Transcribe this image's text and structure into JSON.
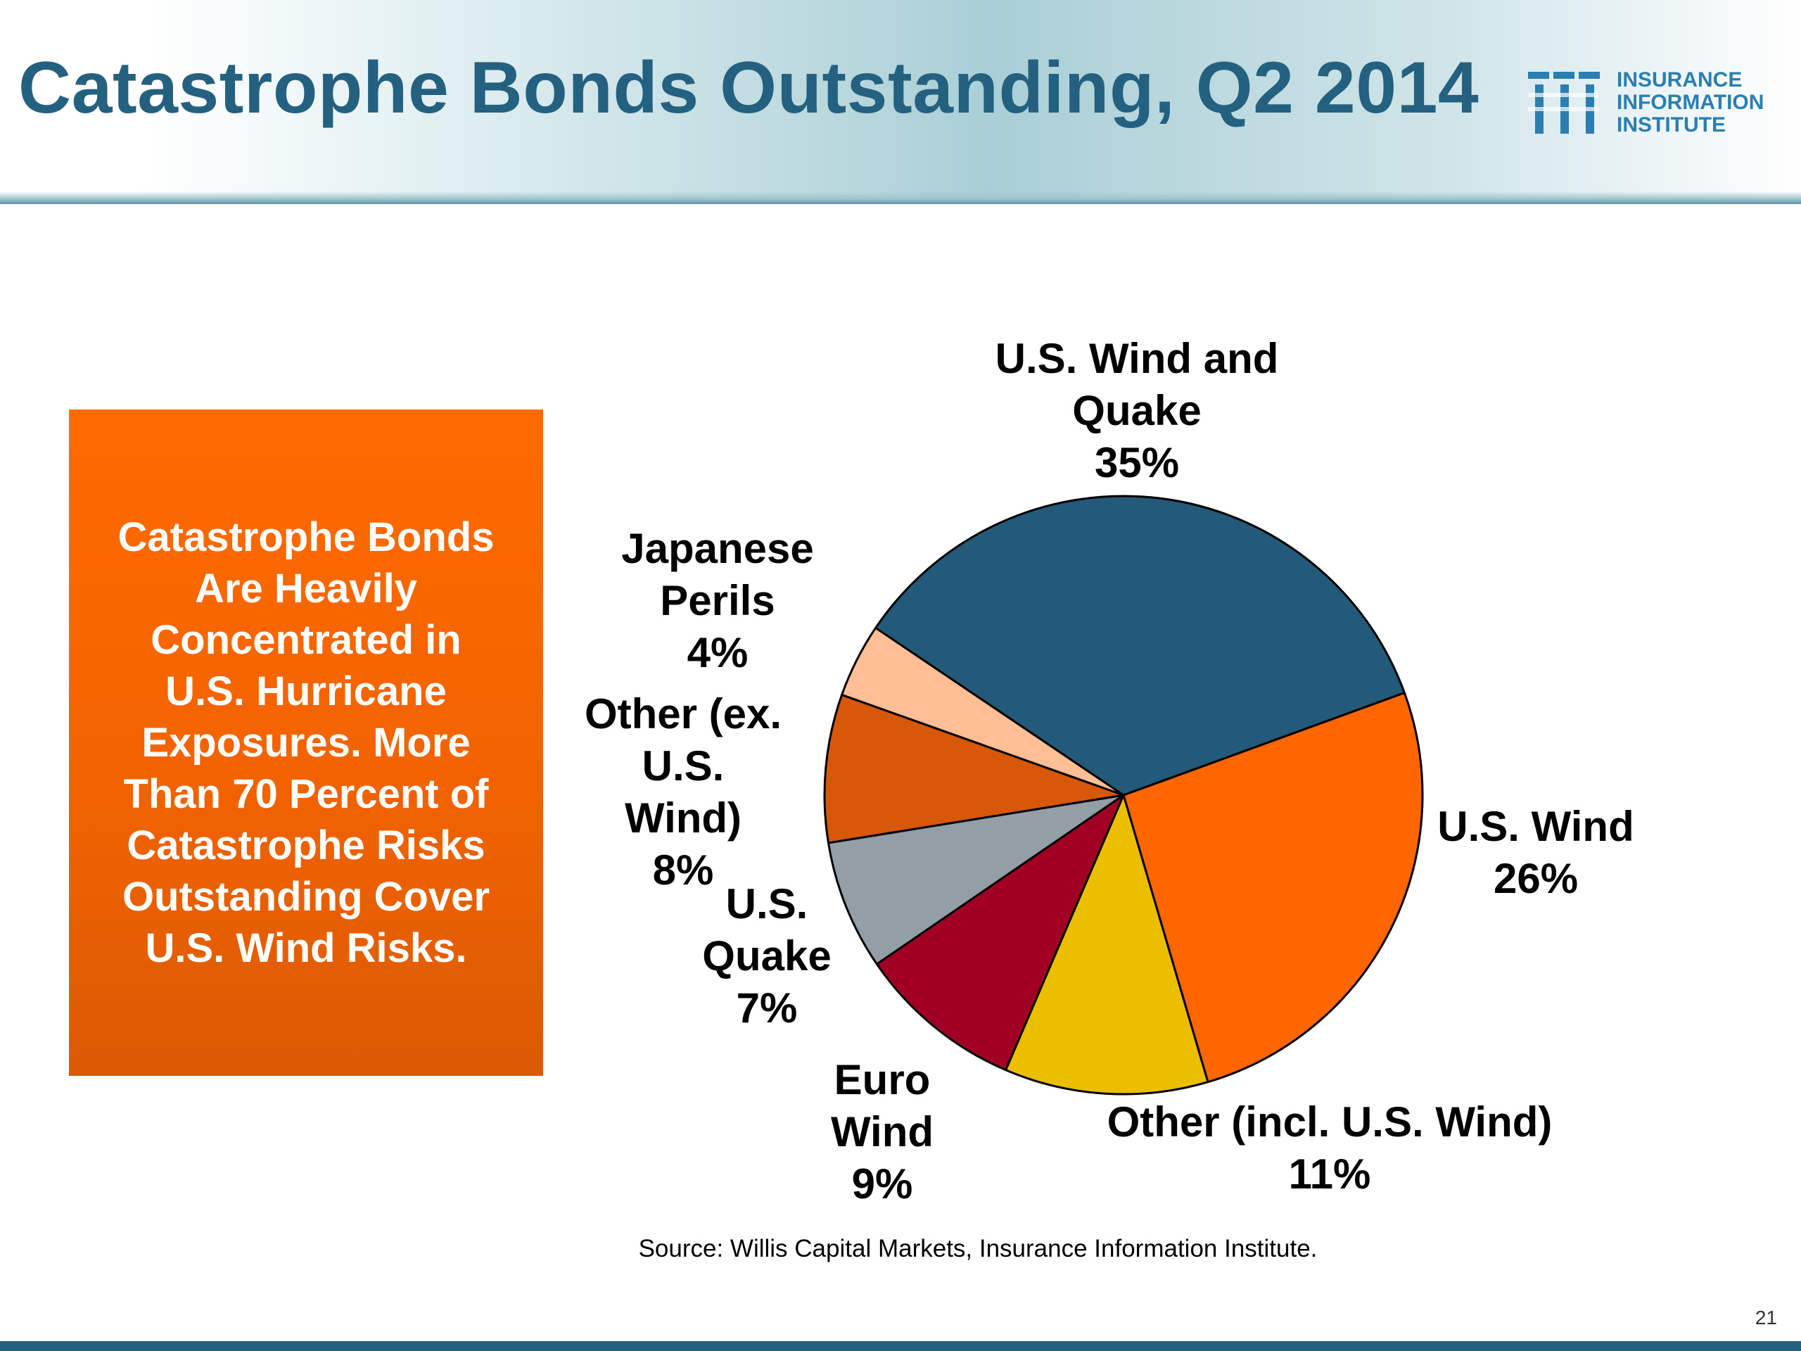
{
  "header": {
    "title": "Catastrophe Bonds Outstanding, Q2 2014",
    "logo": {
      "icon": "iii-logo-icon",
      "lines": [
        "INSURANCE",
        "INFORMATION",
        "INSTITUTE"
      ],
      "color": "#2a7fb0"
    }
  },
  "callout": {
    "lines": [
      "Catastrophe Bonds",
      "Are Heavily",
      "Concentrated in",
      "U.S. Hurricane",
      "Exposures. More",
      "Than 70 Percent of",
      "Catastrophe Risks",
      "Outstanding Cover",
      "U.S. Wind Risks."
    ]
  },
  "chart_data": {
    "type": "pie",
    "title": "",
    "slices": [
      {
        "label": [
          "U.S. Wind and",
          "Quake"
        ],
        "value_label": "35%",
        "value": 35,
        "color": "#235a79"
      },
      {
        "label": [
          "U.S. Wind"
        ],
        "value_label": "26%",
        "value": 26,
        "color": "#ff6600"
      },
      {
        "label": [
          "Other (incl. U.S. Wind)"
        ],
        "value_label": "11%",
        "value": 11,
        "color": "#ecbe00"
      },
      {
        "label": [
          "Euro",
          "Wind"
        ],
        "value_label": "9%",
        "value": 9,
        "color": "#a10024"
      },
      {
        "label": [
          "U.S.",
          "Quake"
        ],
        "value_label": "7%",
        "value": 7,
        "color": "#939ea6"
      },
      {
        "label": [
          "Other (ex.",
          "U.S.",
          "Wind)"
        ],
        "value_label": "8%",
        "value": 8,
        "color": "#d65808"
      },
      {
        "label": [
          "Japanese",
          "Perils"
        ],
        "value_label": "4%",
        "value": 4,
        "color": "#ffbe94"
      }
    ],
    "legend": "none",
    "outline_color": "#000000"
  },
  "footer": {
    "source": "Source: Willis Capital Markets, Insurance Information Institute.",
    "page_number": "21"
  }
}
